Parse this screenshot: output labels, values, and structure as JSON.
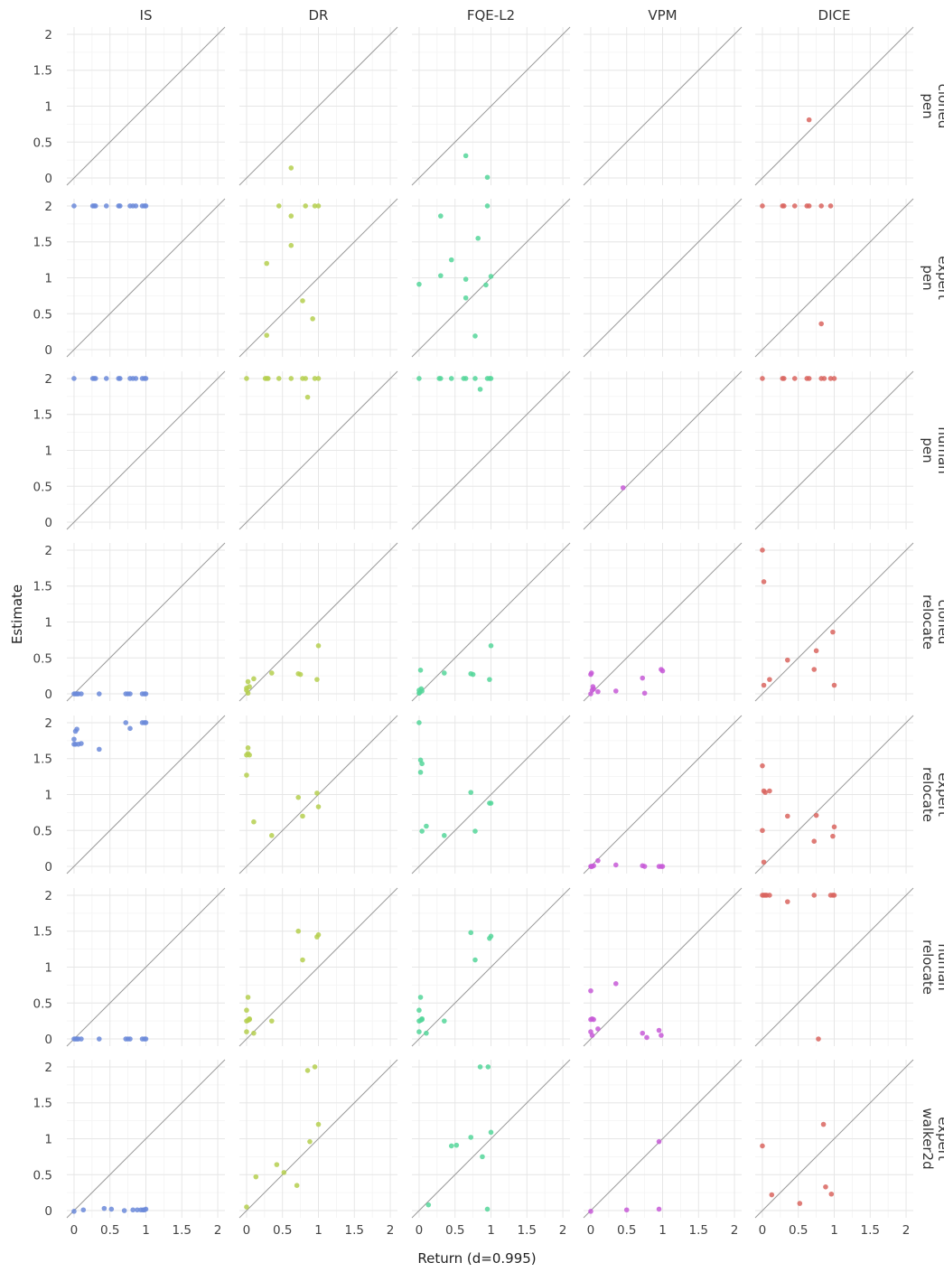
{
  "chart_data": {
    "type": "scatter",
    "xlabel": "Return (d=0.995)",
    "ylabel": "Estimate",
    "xlim": [
      -0.1,
      2.1
    ],
    "ylim": [
      -0.1,
      2.1
    ],
    "x_ticks": [
      0,
      0.5,
      1,
      1.5,
      2
    ],
    "x_tick_labels": [
      "0",
      "0.5",
      "1",
      "1.5",
      "2"
    ],
    "y_ticks": [
      0,
      0.5,
      1,
      1.5,
      2
    ],
    "y_tick_labels": [
      "0",
      "0.5",
      "1",
      "1.5",
      "2"
    ],
    "grid": true,
    "reference_line": "y = x",
    "columns": [
      "IS",
      "DR",
      "FQE-L2",
      "VPM",
      "DICE"
    ],
    "colors": {
      "IS": "#6b8ad9",
      "DR": "#b5cf4f",
      "FQE-L2": "#55d69a",
      "VPM": "#c75bd7",
      "DICE": "#d9655f"
    },
    "rows": [
      {
        "label_line1": "pen",
        "label_line2": "cloned"
      },
      {
        "label_line1": "pen",
        "label_line2": "expert"
      },
      {
        "label_line1": "pen",
        "label_line2": "human"
      },
      {
        "label_line1": "relocate",
        "label_line2": "cloned"
      },
      {
        "label_line1": "relocate",
        "label_line2": "expert"
      },
      {
        "label_line1": "relocate",
        "label_line2": "human"
      },
      {
        "label_line1": "walker2d",
        "label_line2": "expert"
      }
    ],
    "panels": [
      [
        {
          "x": [],
          "y": []
        },
        {
          "x": [
            0.62
          ],
          "y": [
            0.14
          ]
        },
        {
          "x": [
            0.65,
            0.95
          ],
          "y": [
            0.31,
            0.01
          ]
        },
        {
          "x": [],
          "y": []
        },
        {
          "x": [
            0.65
          ],
          "y": [
            0.81
          ]
        }
      ],
      [
        {
          "x": [
            0.0,
            0.26,
            0.28,
            0.3,
            0.45,
            0.62,
            0.64,
            0.78,
            0.82,
            0.86,
            0.95,
            0.98,
            1.0
          ],
          "y": [
            2,
            2,
            2,
            2,
            2,
            2,
            2,
            2,
            2,
            2,
            2,
            2,
            2
          ]
        },
        {
          "x": [
            0.45,
            0.28,
            0.62,
            0.62,
            0.28,
            0.78,
            0.82,
            0.92,
            0.95,
            1.0
          ],
          "y": [
            2.0,
            1.2,
            1.86,
            1.45,
            0.2,
            0.68,
            2.0,
            0.43,
            2.0,
            2.0
          ]
        },
        {
          "x": [
            0.0,
            0.3,
            0.3,
            0.45,
            0.65,
            0.65,
            0.82,
            0.78,
            0.95,
            0.93,
            1.0
          ],
          "y": [
            0.91,
            1.86,
            1.03,
            1.25,
            0.98,
            0.72,
            1.55,
            0.19,
            2.0,
            0.9,
            1.02
          ]
        },
        {
          "x": [],
          "y": []
        },
        {
          "x": [
            0.0,
            0.28,
            0.3,
            0.45,
            0.62,
            0.65,
            0.82,
            0.95,
            0.82
          ],
          "y": [
            2,
            2,
            2,
            2,
            2,
            2,
            2,
            2,
            0.36
          ]
        }
      ],
      [
        {
          "x": [
            0.0,
            0.26,
            0.28,
            0.3,
            0.45,
            0.62,
            0.64,
            0.78,
            0.82,
            0.86,
            0.95,
            0.98,
            1.0
          ],
          "y": [
            2,
            2,
            2,
            2,
            2,
            2,
            2,
            2,
            2,
            2,
            2,
            2,
            2
          ]
        },
        {
          "x": [
            0.0,
            0.26,
            0.28,
            0.3,
            0.45,
            0.62,
            0.78,
            0.82,
            0.95,
            1.0,
            0.85
          ],
          "y": [
            2,
            2,
            2,
            2,
            2,
            2,
            2,
            2,
            2,
            2,
            1.74
          ]
        },
        {
          "x": [
            0.0,
            0.28,
            0.3,
            0.45,
            0.62,
            0.65,
            0.78,
            0.95,
            0.98,
            1.0,
            0.85
          ],
          "y": [
            2,
            2,
            2,
            2,
            2,
            2,
            2,
            2,
            2,
            2,
            1.85
          ]
        },
        {
          "x": [
            0.45
          ],
          "y": [
            0.48
          ]
        },
        {
          "x": [
            0.0,
            0.28,
            0.3,
            0.45,
            0.62,
            0.65,
            0.82,
            0.86,
            0.95,
            1.0
          ],
          "y": [
            2,
            2,
            2,
            2,
            2,
            2,
            2,
            2,
            2,
            2
          ]
        }
      ],
      [
        {
          "x": [
            0.0,
            0.02,
            0.04,
            0.06,
            0.1,
            0.35,
            0.72,
            0.75,
            0.78,
            0.95,
            0.98,
            1.0
          ],
          "y": [
            0,
            0,
            0,
            0,
            0,
            0,
            0,
            0,
            0,
            0,
            0,
            0
          ]
        },
        {
          "x": [
            0.0,
            0.02,
            0.0,
            0.04,
            0.02,
            0.1,
            0.35,
            0.72,
            0.75,
            0.98,
            1.0
          ],
          "y": [
            0.05,
            0.17,
            0.08,
            0.1,
            0.01,
            0.21,
            0.29,
            0.28,
            0.27,
            0.2,
            0.67
          ]
        },
        {
          "x": [
            0.0,
            0.02,
            0.01,
            0.03,
            0.04,
            0.0,
            0.35,
            0.72,
            0.75,
            0.98,
            1.0
          ],
          "y": [
            0.05,
            0.33,
            0.02,
            0.07,
            0.04,
            0.01,
            0.29,
            0.28,
            0.27,
            0.2,
            0.67
          ]
        },
        {
          "x": [
            0.0,
            0.01,
            0.02,
            0.03,
            0.04,
            0.0,
            0.1,
            0.35,
            0.72,
            0.75,
            0.98,
            1.0
          ],
          "y": [
            0.27,
            0.29,
            0.05,
            0.1,
            0.07,
            0.0,
            0.03,
            0.04,
            0.22,
            0.01,
            0.34,
            0.32
          ]
        },
        {
          "x": [
            0.0,
            0.02,
            0.02,
            0.1,
            0.35,
            0.72,
            0.75,
            0.98,
            1.0
          ],
          "y": [
            2.0,
            1.56,
            0.12,
            0.2,
            0.47,
            0.34,
            0.6,
            0.86,
            0.12
          ]
        }
      ],
      [
        {
          "x": [
            0.0,
            0.02,
            0.04,
            0.0,
            0.02,
            0.06,
            0.1,
            0.35,
            0.72,
            0.78,
            0.95,
            0.98,
            1.0
          ],
          "y": [
            1.77,
            1.88,
            1.91,
            1.7,
            1.7,
            1.7,
            1.71,
            1.63,
            2.0,
            1.92,
            2.0,
            2.0,
            2.0
          ]
        },
        {
          "x": [
            0.0,
            0.02,
            0.04,
            0.0,
            0.02,
            0.1,
            0.35,
            0.72,
            0.78,
            0.98,
            1.0
          ],
          "y": [
            1.55,
            1.65,
            1.55,
            1.27,
            1.57,
            0.62,
            0.43,
            0.96,
            0.7,
            1.02,
            0.83
          ]
        },
        {
          "x": [
            0.0,
            0.02,
            0.04,
            0.02,
            0.04,
            0.1,
            0.35,
            0.72,
            0.78,
            0.98,
            1.0
          ],
          "y": [
            2.0,
            1.48,
            1.43,
            1.31,
            0.49,
            0.56,
            0.43,
            1.03,
            0.49,
            0.88,
            0.88
          ]
        },
        {
          "x": [
            0.0,
            0.01,
            0.02,
            0.04,
            0.1,
            0.35,
            0.72,
            0.75,
            0.95,
            0.98,
            1.0
          ],
          "y": [
            0.0,
            0.0,
            0.0,
            0.01,
            0.08,
            0.02,
            0.01,
            0.0,
            0.0,
            0.0,
            0.0
          ]
        },
        {
          "x": [
            0.0,
            0.02,
            0.04,
            0.1,
            0.0,
            0.02,
            0.35,
            0.72,
            0.75,
            0.98,
            1.0
          ],
          "y": [
            1.4,
            1.05,
            1.03,
            1.05,
            0.5,
            0.06,
            0.7,
            0.35,
            0.71,
            0.42,
            0.55
          ]
        }
      ],
      [
        {
          "x": [
            0.0,
            0.02,
            0.04,
            0.06,
            0.1,
            0.35,
            0.72,
            0.75,
            0.78,
            0.95,
            0.98,
            1.0
          ],
          "y": [
            0,
            0,
            0,
            0,
            0,
            0,
            0,
            0,
            0,
            0,
            0,
            0
          ]
        },
        {
          "x": [
            0.02,
            0.0,
            0.04,
            0.0,
            0.02,
            0.04,
            0.0,
            0.1,
            0.35,
            0.72,
            0.78,
            0.98,
            1.0
          ],
          "y": [
            0.58,
            0.4,
            0.27,
            0.25,
            0.26,
            0.28,
            0.1,
            0.08,
            0.25,
            1.5,
            1.1,
            1.42,
            1.45
          ]
        },
        {
          "x": [
            0.02,
            0.0,
            0.04,
            0.0,
            0.02,
            0.04,
            0.0,
            0.1,
            0.35,
            0.72,
            0.78,
            0.98,
            1.0
          ],
          "y": [
            0.58,
            0.4,
            0.27,
            0.25,
            0.26,
            0.28,
            0.1,
            0.08,
            0.25,
            1.48,
            1.1,
            1.4,
            1.43
          ]
        },
        {
          "x": [
            0.0,
            0.02,
            0.0,
            0.04,
            0.0,
            0.02,
            0.1,
            0.35,
            0.72,
            0.78,
            0.95,
            0.98
          ],
          "y": [
            0.67,
            0.28,
            0.27,
            0.27,
            0.1,
            0.05,
            0.14,
            0.77,
            0.08,
            0.02,
            0.12,
            0.05
          ]
        },
        {
          "x": [
            0.0,
            0.02,
            0.04,
            0.06,
            0.1,
            0.35,
            0.72,
            0.95,
            0.98,
            1.0,
            0.78
          ],
          "y": [
            2,
            2,
            2,
            2,
            2,
            1.91,
            2,
            2,
            2,
            2,
            0.0
          ]
        }
      ],
      [
        {
          "x": [
            0.0,
            0.13,
            0.42,
            0.52,
            0.7,
            0.82,
            0.88,
            0.93,
            0.96,
            1.0,
            0.98
          ],
          "y": [
            -0.01,
            0.01,
            0.03,
            0.02,
            0.0,
            0.01,
            0.01,
            0.01,
            0.01,
            0.02,
            0.01
          ]
        },
        {
          "x": [
            0.0,
            0.13,
            0.42,
            0.52,
            0.7,
            0.85,
            0.88,
            0.95,
            1.0
          ],
          "y": [
            0.05,
            0.47,
            0.64,
            0.53,
            0.35,
            1.95,
            0.96,
            2.0,
            1.2
          ]
        },
        {
          "x": [
            0.13,
            0.45,
            0.52,
            0.72,
            0.85,
            0.88,
            0.96,
            0.95,
            1.0
          ],
          "y": [
            0.08,
            0.9,
            0.91,
            1.02,
            2.0,
            0.75,
            2.0,
            0.02,
            1.09
          ]
        },
        {
          "x": [
            0.0,
            0.5,
            0.95,
            0.95
          ],
          "y": [
            -0.01,
            0.01,
            0.02,
            0.96
          ]
        },
        {
          "x": [
            0.0,
            0.13,
            0.52,
            0.85,
            0.88,
            0.96
          ],
          "y": [
            0.9,
            0.22,
            0.1,
            1.2,
            0.33,
            0.23
          ]
        }
      ]
    ]
  }
}
